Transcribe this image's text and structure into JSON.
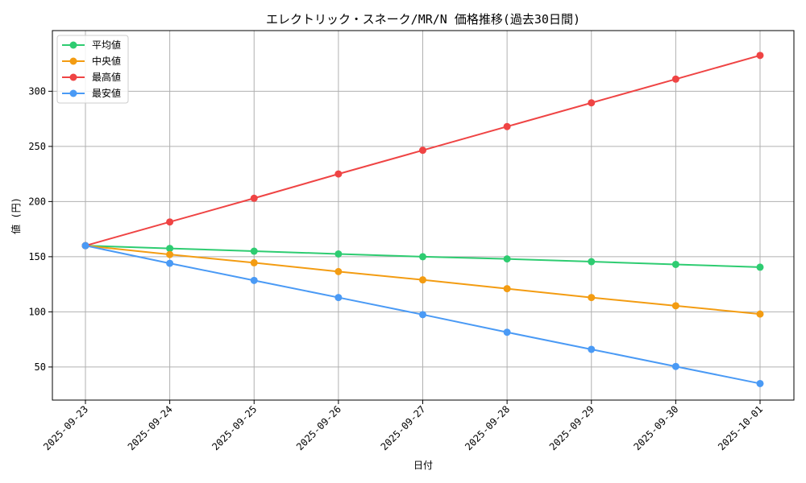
{
  "chart_data": {
    "type": "line",
    "title": "エレクトリック・スネーク/MR/N 価格推移(過去30日間)",
    "xlabel": "日付",
    "ylabel": "値 (円)",
    "categories": [
      "2025-09-23",
      "2025-09-24",
      "2025-09-25",
      "2025-09-26",
      "2025-09-27",
      "2025-09-28",
      "2025-09-29",
      "2025-09-30",
      "2025-10-01"
    ],
    "ylim": [
      20,
      355
    ],
    "yticks": [
      50,
      100,
      150,
      200,
      250,
      300
    ],
    "grid": true,
    "legend_position": "top-left",
    "series": [
      {
        "name": "平均値",
        "color": "#2ecc71",
        "values": [
          160,
          157.5,
          155,
          152.5,
          150,
          148,
          145.5,
          143,
          140.5
        ]
      },
      {
        "name": "中央値",
        "color": "#f39c12",
        "values": [
          160,
          152,
          144.5,
          136.5,
          129,
          121,
          113,
          105.5,
          98
        ]
      },
      {
        "name": "最高値",
        "color": "#ef4444",
        "values": [
          160,
          181.5,
          203,
          225,
          246.5,
          268,
          289.5,
          311,
          332.5
        ]
      },
      {
        "name": "最安値",
        "color": "#4a9af5",
        "values": [
          160,
          144,
          128.5,
          113,
          97.5,
          81.5,
          66,
          50.5,
          35
        ]
      }
    ]
  }
}
